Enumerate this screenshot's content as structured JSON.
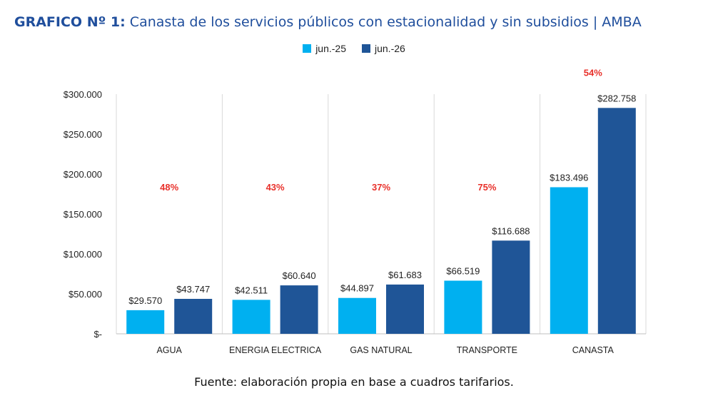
{
  "title": {
    "prefix": "GRAFICO Nº 1:",
    "text": "Canasta de los servicios públicos con estacionalidad y sin subsidios | AMBA"
  },
  "source": "Fuente: elaboración propia en base a cuadros tarifarios.",
  "colors": {
    "series1": "#00b0f0",
    "series2": "#1f5597",
    "percent": "#e8302a",
    "title": "#1f4e9c"
  },
  "chart_data": {
    "type": "bar",
    "categories": [
      "AGUA",
      "ENERGIA ELECTRICA",
      "GAS NATURAL",
      "TRANSPORTE",
      "CANASTA"
    ],
    "series": [
      {
        "name": "jun.-25",
        "values": [
          29570,
          42511,
          44897,
          66519,
          183496
        ],
        "labels": [
          "$29.570",
          "$42.511",
          "$44.897",
          "$66.519",
          "$183.496"
        ]
      },
      {
        "name": "jun.-26",
        "values": [
          43747,
          60640,
          61683,
          116688,
          282758
        ],
        "labels": [
          "$43.747",
          "$60.640",
          "$61.683",
          "$116.688",
          "$282.758"
        ]
      }
    ],
    "percent_labels": [
      "48%",
      "43%",
      "37%",
      "75%",
      "54%"
    ],
    "ylim": [
      0,
      300000
    ],
    "yticks": [
      0,
      50000,
      100000,
      150000,
      200000,
      250000,
      300000
    ],
    "ytick_labels": [
      "$-",
      "$50.000",
      "$100.000",
      "$150.000",
      "$200.000",
      "$250.000",
      "$300.000"
    ],
    "grid": false,
    "legend_position": "top-center"
  }
}
